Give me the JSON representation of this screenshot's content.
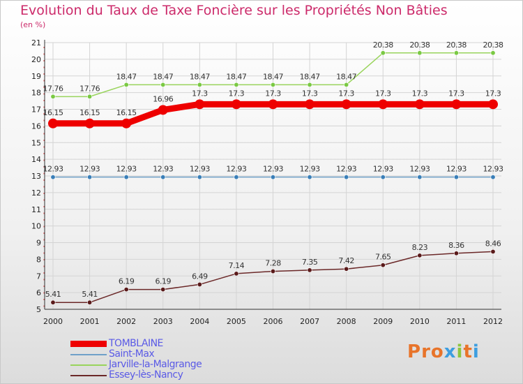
{
  "title": "Evolution du Taux de Taxe Foncière sur les Propriétés Non Bâties",
  "unit": "(en %)",
  "logo": {
    "text": "Proxiti",
    "colors": [
      "#e8742a",
      "#e8742a",
      "#e8742a",
      "#3d9ee0",
      "#8cc63f",
      "#e8742a",
      "#3d9ee0"
    ]
  },
  "chart_data": {
    "type": "line",
    "title": "Evolution du Taux de Taxe Foncière sur les Propriétés Non Bâties",
    "ylabel": "(en %)",
    "xlabel": "",
    "ylim": [
      5,
      21
    ],
    "yticks": [
      "5",
      "6",
      "7",
      "8",
      "9",
      "10",
      "11",
      "12",
      "13",
      "14",
      "15",
      "16",
      "17",
      "18",
      "19",
      "20",
      "21"
    ],
    "categories": [
      "2000",
      "2001",
      "2002",
      "2003",
      "2004",
      "2005",
      "2006",
      "2007",
      "2008",
      "2009",
      "2010",
      "2011",
      "2012"
    ],
    "legend_position": "bottom-left",
    "series": [
      {
        "name": "TOMBLAINE",
        "color": "#ee0000",
        "line_color": "#ee0000",
        "marker_color": "#ee0000",
        "emphasis": "thick",
        "values": [
          16.15,
          16.15,
          16.15,
          16.96,
          17.3,
          17.3,
          17.3,
          17.3,
          17.3,
          17.3,
          17.3,
          17.3,
          17.3
        ],
        "labels": [
          "16.15",
          "16.15",
          "16.15",
          "16.96",
          "17.3",
          "17.3",
          "17.3",
          "17.3",
          "17.3",
          "17.3",
          "17.3",
          "17.3",
          "17.3"
        ]
      },
      {
        "name": "Saint-Max",
        "color": "#6fa0c8",
        "line_color": "#6fa0c8",
        "marker_color": "#3a7fb8",
        "emphasis": "thin",
        "values": [
          12.93,
          12.93,
          12.93,
          12.93,
          12.93,
          12.93,
          12.93,
          12.93,
          12.93,
          12.93,
          12.93,
          12.93,
          12.93
        ],
        "labels": [
          "12.93",
          "12.93",
          "12.93",
          "12.93",
          "12.93",
          "12.93",
          "12.93",
          "12.93",
          "12.93",
          "12.93",
          "12.93",
          "12.93",
          "12.93"
        ]
      },
      {
        "name": "Jarville-la-Malgrange",
        "color": "#99d45c",
        "line_color": "#99d45c",
        "marker_color": "#7ac943",
        "emphasis": "thin",
        "values": [
          17.76,
          17.76,
          18.47,
          18.47,
          18.47,
          18.47,
          18.47,
          18.47,
          18.47,
          20.38,
          20.38,
          20.38,
          20.38
        ],
        "labels": [
          "17.76",
          "17.76",
          "18.47",
          "18.47",
          "18.47",
          "18.47",
          "18.47",
          "18.47",
          "18.47",
          "20.38",
          "20.38",
          "20.38",
          "20.38"
        ]
      },
      {
        "name": "Essey-lès-Nancy",
        "color": "#6b2828",
        "line_color": "#6b2828",
        "marker_color": "#5a1a1a",
        "emphasis": "thin",
        "values": [
          5.41,
          5.41,
          6.19,
          6.19,
          6.49,
          7.14,
          7.28,
          7.35,
          7.42,
          7.65,
          8.23,
          8.36,
          8.46
        ],
        "labels": [
          "5.41",
          "5.41",
          "6.19",
          "6.19",
          "6.49",
          "7.14",
          "7.28",
          "7.35",
          "7.42",
          "7.65",
          "8.23",
          "8.36",
          "8.46"
        ]
      }
    ]
  }
}
